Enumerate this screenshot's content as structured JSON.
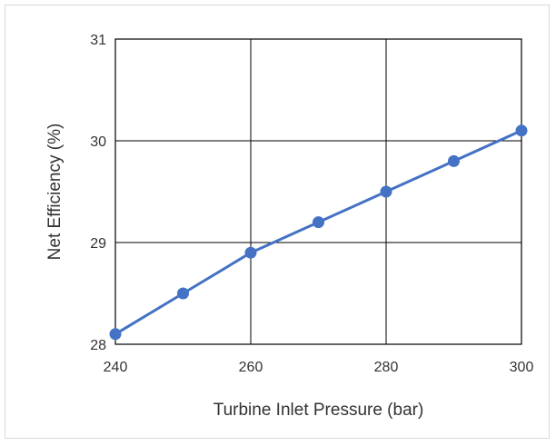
{
  "chart_data": {
    "type": "line",
    "title": "",
    "xlabel": "Turbine Inlet Pressure (bar)",
    "ylabel": "Net Efficiency (%)",
    "xlim": [
      240,
      300
    ],
    "ylim": [
      28,
      31
    ],
    "xticks": [
      240,
      260,
      280,
      300
    ],
    "yticks": [
      28,
      29,
      30,
      31
    ],
    "grid": true,
    "legend": "none",
    "series": [
      {
        "x": [
          240,
          250,
          260,
          270,
          280,
          290,
          300
        ],
        "y": [
          28.1,
          28.5,
          28.9,
          29.2,
          29.5,
          29.8,
          30.1
        ],
        "color": "#4472C4",
        "marker": "circle"
      }
    ]
  }
}
